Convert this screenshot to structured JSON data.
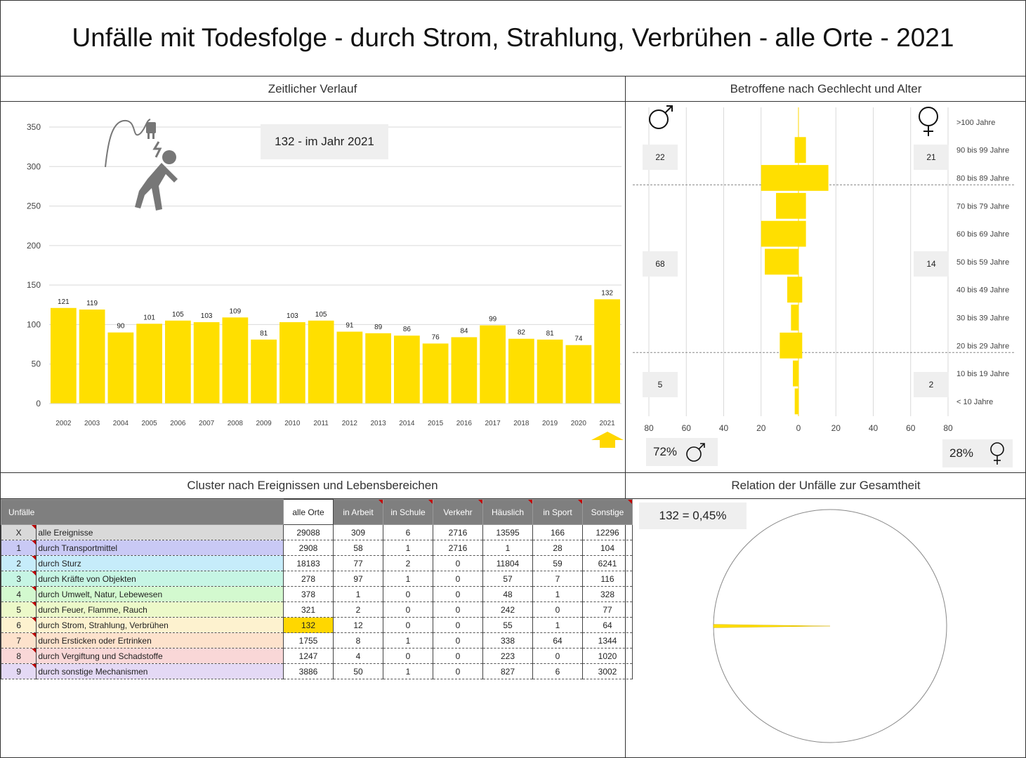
{
  "page_title": "Unfälle mit Todesfolge - durch Strom, Strahlung, Verbrühen - alle Orte - 2021",
  "sections": {
    "timeline": "Zeitlicher Verlauf",
    "gender_age": "Betroffene nach Gechlecht und Alter",
    "cluster": "Cluster nach Ereignissen und Lebensbereichen",
    "relation": "Relation der Unfälle zur Gesamtheit"
  },
  "timeline_box": "132 - im Jahr 2021",
  "relation_box": "132 =  0,45%",
  "colors": {
    "bar": "#FFDF00",
    "highlight": "#FFD700",
    "header": "#7f7f7f"
  },
  "icons": {
    "accident": "electric-shock-icon",
    "male": "male-symbol-icon",
    "female": "female-symbol-icon",
    "arrow": "arrow-up-icon"
  },
  "chart_data": [
    {
      "type": "bar",
      "categories": [
        "2002",
        "2003",
        "2004",
        "2005",
        "2006",
        "2007",
        "2008",
        "2009",
        "2010",
        "2011",
        "2012",
        "2013",
        "2014",
        "2015",
        "2016",
        "2017",
        "2018",
        "2019",
        "2020",
        "2021"
      ],
      "values": [
        121,
        119,
        90,
        101,
        105,
        103,
        109,
        81,
        103,
        105,
        91,
        89,
        86,
        76,
        84,
        99,
        82,
        81,
        74,
        132
      ],
      "ylim": [
        0,
        350
      ],
      "yticks": [
        "0",
        "50",
        "100",
        "150",
        "200",
        "250",
        "300",
        "350"
      ],
      "grid": true
    },
    {
      "type": "bar",
      "orientation": "horizontal",
      "categories": [
        ">100 Jahre",
        "90 bis 99 Jahre",
        "80 bis 89 Jahre",
        "70 bis 79 Jahre",
        "60 bis 69 Jahre",
        "50 bis 59 Jahre",
        "40 bis 49 Jahre",
        "30 bis 39 Jahre",
        "20 bis 29 Jahre",
        "10 bis 19 Jahre",
        "< 10 Jahre"
      ],
      "series": [
        {
          "values": [
            0,
            2,
            20,
            12,
            20,
            18,
            6,
            4,
            10,
            3,
            2
          ]
        },
        {
          "values": [
            0,
            4,
            16,
            4,
            4,
            0,
            2,
            0,
            2,
            0,
            0
          ]
        }
      ],
      "xticks": [
        "80",
        "60",
        "40",
        "20",
        "0",
        "20",
        "40",
        "60",
        "80"
      ],
      "xlim": [
        -80,
        80
      ],
      "group_totals_male": [
        "22",
        "68",
        "5"
      ],
      "group_totals_female": [
        "21",
        "14",
        "2"
      ],
      "share_male": "72%",
      "share_female": "28%"
    },
    {
      "type": "pie",
      "values": [
        0.45,
        99.55
      ]
    }
  ],
  "table": {
    "header": [
      "Unfälle",
      "",
      "alle Orte",
      "in Arbeit",
      "in Schule",
      "Verkehr",
      "Häuslich",
      "in Sport",
      "Sonstige"
    ],
    "rows": [
      {
        "idx": "X",
        "name": "alle Ereignisse",
        "vals": [
          "29088",
          "309",
          "6",
          "2716",
          "13595",
          "166",
          "12296"
        ],
        "color": "#d9d9d9"
      },
      {
        "idx": "1",
        "name": "durch Transportmittel",
        "vals": [
          "2908",
          "58",
          "1",
          "2716",
          "1",
          "28",
          "104"
        ],
        "color": "#c9c9f5"
      },
      {
        "idx": "2",
        "name": "durch Sturz",
        "vals": [
          "18183",
          "77",
          "2",
          "0",
          "11804",
          "59",
          "6241"
        ],
        "color": "#c6ecfa"
      },
      {
        "idx": "3",
        "name": "durch Kräfte von Objekten",
        "vals": [
          "278",
          "97",
          "1",
          "0",
          "57",
          "7",
          "116"
        ],
        "color": "#c6f5e4"
      },
      {
        "idx": "4",
        "name": "durch Umwelt, Natur, Lebewesen",
        "vals": [
          "378",
          "1",
          "0",
          "0",
          "48",
          "1",
          "328"
        ],
        "color": "#d3f9cf"
      },
      {
        "idx": "5",
        "name": "durch Feuer, Flamme, Rauch",
        "vals": [
          "321",
          "2",
          "0",
          "0",
          "242",
          "0",
          "77"
        ],
        "color": "#ecf9c9"
      },
      {
        "idx": "6",
        "name": "durch Strom, Strahlung, Verbrühen",
        "vals": [
          "132",
          "12",
          "0",
          "0",
          "55",
          "1",
          "64"
        ],
        "color": "#fdf2cf"
      },
      {
        "idx": "7",
        "name": "durch Ersticken oder Ertrinken",
        "vals": [
          "1755",
          "8",
          "1",
          "0",
          "338",
          "64",
          "1344"
        ],
        "color": "#fde2cc"
      },
      {
        "idx": "8",
        "name": "durch Vergiftung und Schadstoffe",
        "vals": [
          "1247",
          "4",
          "0",
          "0",
          "223",
          "0",
          "1020"
        ],
        "color": "#f9d7d7"
      },
      {
        "idx": "9",
        "name": "durch sonstige Mechanismen",
        "vals": [
          "3886",
          "50",
          "1",
          "0",
          "827",
          "6",
          "3002"
        ],
        "color": "#e4d9f5"
      }
    ]
  }
}
